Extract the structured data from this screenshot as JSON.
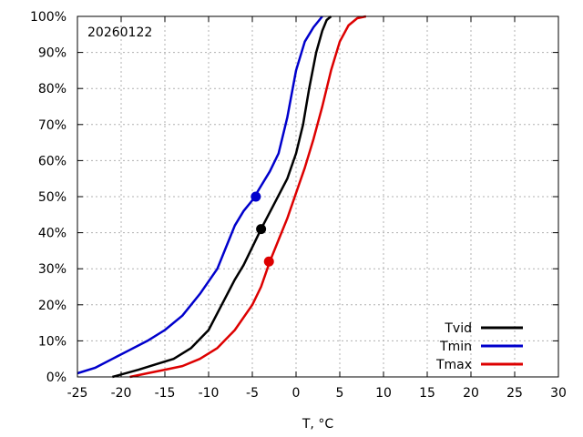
{
  "chart_data": {
    "type": "line",
    "title": "",
    "annotation": "20260122",
    "xlabel": "T, °C",
    "ylabel": "",
    "xlim": [
      -25,
      30
    ],
    "ylim": [
      0,
      100
    ],
    "x_ticks": [
      -25,
      -20,
      -15,
      -10,
      -5,
      0,
      5,
      10,
      15,
      20,
      25,
      30
    ],
    "x_tick_labels": [
      "-25",
      "-20",
      "-15",
      "-10",
      "-5",
      "0",
      "5",
      "10",
      "15",
      "20",
      "25",
      "30"
    ],
    "y_ticks": [
      0,
      10,
      20,
      30,
      40,
      50,
      60,
      70,
      80,
      90,
      100
    ],
    "y_tick_labels": [
      "0%",
      "10%",
      "20%",
      "30%",
      "40%",
      "50%",
      "60%",
      "70%",
      "80%",
      "90%",
      "100%"
    ],
    "grid": true,
    "legend_position": "bottom-right",
    "series": [
      {
        "name": "Tvid",
        "color": "#000000",
        "marker": {
          "x": -4,
          "y": 41
        },
        "points": [
          [
            -21,
            0
          ],
          [
            -18,
            2
          ],
          [
            -16,
            3.5
          ],
          [
            -14,
            5
          ],
          [
            -12,
            8
          ],
          [
            -10,
            13
          ],
          [
            -8.5,
            20
          ],
          [
            -7,
            27
          ],
          [
            -6,
            31
          ],
          [
            -5,
            36
          ],
          [
            -4,
            41
          ],
          [
            -2.5,
            48
          ],
          [
            -1,
            55
          ],
          [
            0,
            62
          ],
          [
            0.8,
            70
          ],
          [
            1.5,
            80
          ],
          [
            2.3,
            90
          ],
          [
            3,
            96
          ],
          [
            3.5,
            99
          ],
          [
            4,
            100
          ]
        ]
      },
      {
        "name": "Tmin",
        "color": "#0000cc",
        "marker": {
          "x": -4.6,
          "y": 50
        },
        "points": [
          [
            -25,
            1
          ],
          [
            -23,
            2.5
          ],
          [
            -21,
            5
          ],
          [
            -19,
            7.5
          ],
          [
            -17,
            10
          ],
          [
            -15,
            13
          ],
          [
            -13,
            17
          ],
          [
            -11,
            23
          ],
          [
            -9,
            30
          ],
          [
            -8,
            36
          ],
          [
            -7,
            42
          ],
          [
            -6,
            46
          ],
          [
            -5,
            49
          ],
          [
            -4,
            53
          ],
          [
            -3,
            57
          ],
          [
            -2,
            62
          ],
          [
            -1,
            72
          ],
          [
            0,
            85
          ],
          [
            1,
            93
          ],
          [
            2,
            97
          ],
          [
            3,
            100
          ]
        ]
      },
      {
        "name": "Tmax",
        "color": "#dd0000",
        "marker": {
          "x": -3.1,
          "y": 32
        },
        "points": [
          [
            -19,
            0
          ],
          [
            -17,
            1
          ],
          [
            -15,
            2
          ],
          [
            -13,
            3
          ],
          [
            -11,
            5
          ],
          [
            -9,
            8
          ],
          [
            -7,
            13
          ],
          [
            -5,
            20
          ],
          [
            -4,
            25
          ],
          [
            -3,
            32
          ],
          [
            -2,
            38
          ],
          [
            -1,
            44
          ],
          [
            0,
            51
          ],
          [
            1,
            58
          ],
          [
            2,
            66
          ],
          [
            3,
            75
          ],
          [
            4,
            85
          ],
          [
            5,
            93
          ],
          [
            6,
            97.5
          ],
          [
            7,
            99.5
          ],
          [
            8,
            100
          ]
        ]
      }
    ]
  }
}
